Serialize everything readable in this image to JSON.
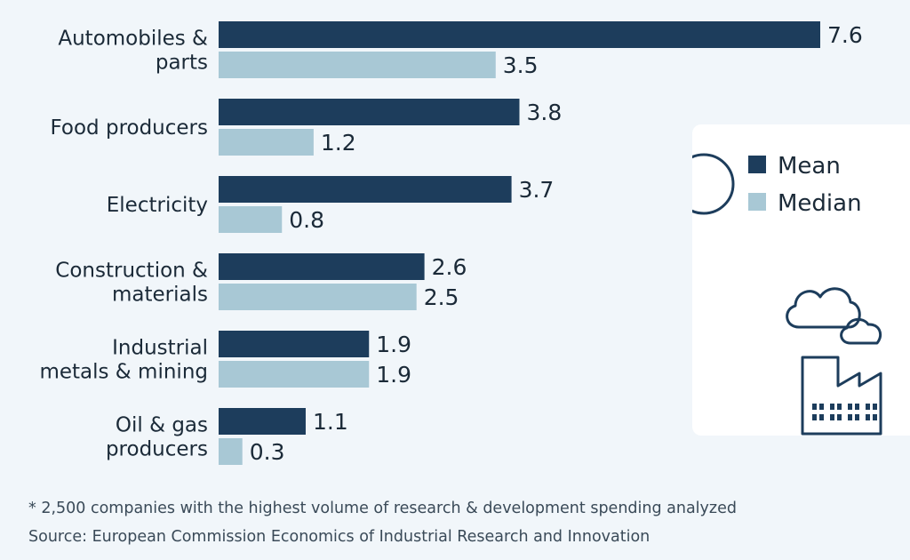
{
  "chart_data": {
    "type": "bar",
    "orientation": "horizontal",
    "categories": [
      [
        "Automobiles &",
        "parts"
      ],
      [
        "Food producers"
      ],
      [
        "Electricity"
      ],
      [
        "Construction &",
        "materials"
      ],
      [
        "Industrial",
        "metals & mining"
      ],
      [
        "Oil & gas",
        "producers"
      ]
    ],
    "series": [
      {
        "name": "Mean",
        "color": "#1d3d5c",
        "values": [
          7.6,
          3.8,
          3.7,
          2.6,
          1.9,
          1.1
        ],
        "labels": [
          "7.6",
          "3.8",
          "3.7",
          "2.6",
          "1.9",
          "1.1"
        ]
      },
      {
        "name": "Median",
        "color": "#a8c8d5",
        "values": [
          3.5,
          1.2,
          0.8,
          2.5,
          1.9,
          0.3
        ],
        "labels": [
          "3.5",
          "1.2",
          "0.8",
          "2.5",
          "1.9",
          "0.3"
        ]
      }
    ],
    "xlim": [
      0,
      7.6
    ],
    "grid": false,
    "legend_position": "right",
    "legend_icons": [
      "magnifier-icon",
      "cloud-icon",
      "factory-icon"
    ]
  },
  "footnotes": {
    "note": "* 2,500 companies with the highest volume of research & development spending analyzed",
    "source": "Source: European Commission Economics of Industrial Research and Innovation"
  }
}
